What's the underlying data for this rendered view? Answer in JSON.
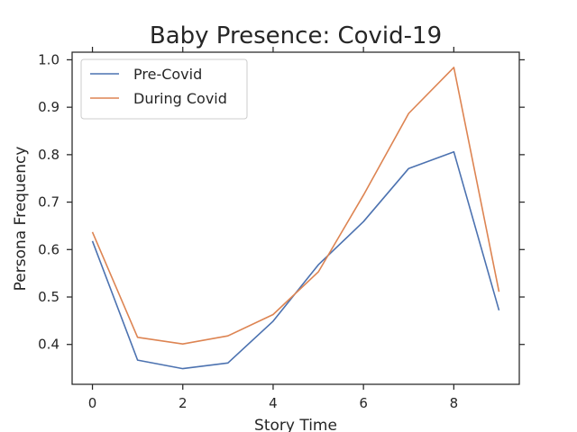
{
  "chart_data": {
    "type": "line",
    "title": "Baby Presence: Covid-19",
    "xlabel": "Story Time",
    "ylabel": "Persona Frequency",
    "x": [
      0,
      1,
      2,
      3,
      4,
      5,
      6,
      7,
      8,
      9
    ],
    "xlim": [
      -0.45,
      9.45
    ],
    "ylim": [
      0.316,
      1.016
    ],
    "xticks": [
      0,
      2,
      4,
      6,
      8
    ],
    "yticks": [
      0.4,
      0.5,
      0.6,
      0.7,
      0.8,
      0.9,
      1.0
    ],
    "ytick_labels": [
      "0.4",
      "0.5",
      "0.6",
      "0.7",
      "0.8",
      "0.9",
      "1.0"
    ],
    "grid": false,
    "legend_position": "top-left",
    "series": [
      {
        "name": "Pre-Covid",
        "color": "#4c72b0",
        "values": [
          0.618,
          0.367,
          0.349,
          0.361,
          0.449,
          0.568,
          0.659,
          0.771,
          0.806,
          0.472
        ]
      },
      {
        "name": "During Covid",
        "color": "#dd8452",
        "values": [
          0.637,
          0.415,
          0.401,
          0.418,
          0.463,
          0.553,
          0.715,
          0.887,
          0.984,
          0.511
        ]
      }
    ]
  }
}
